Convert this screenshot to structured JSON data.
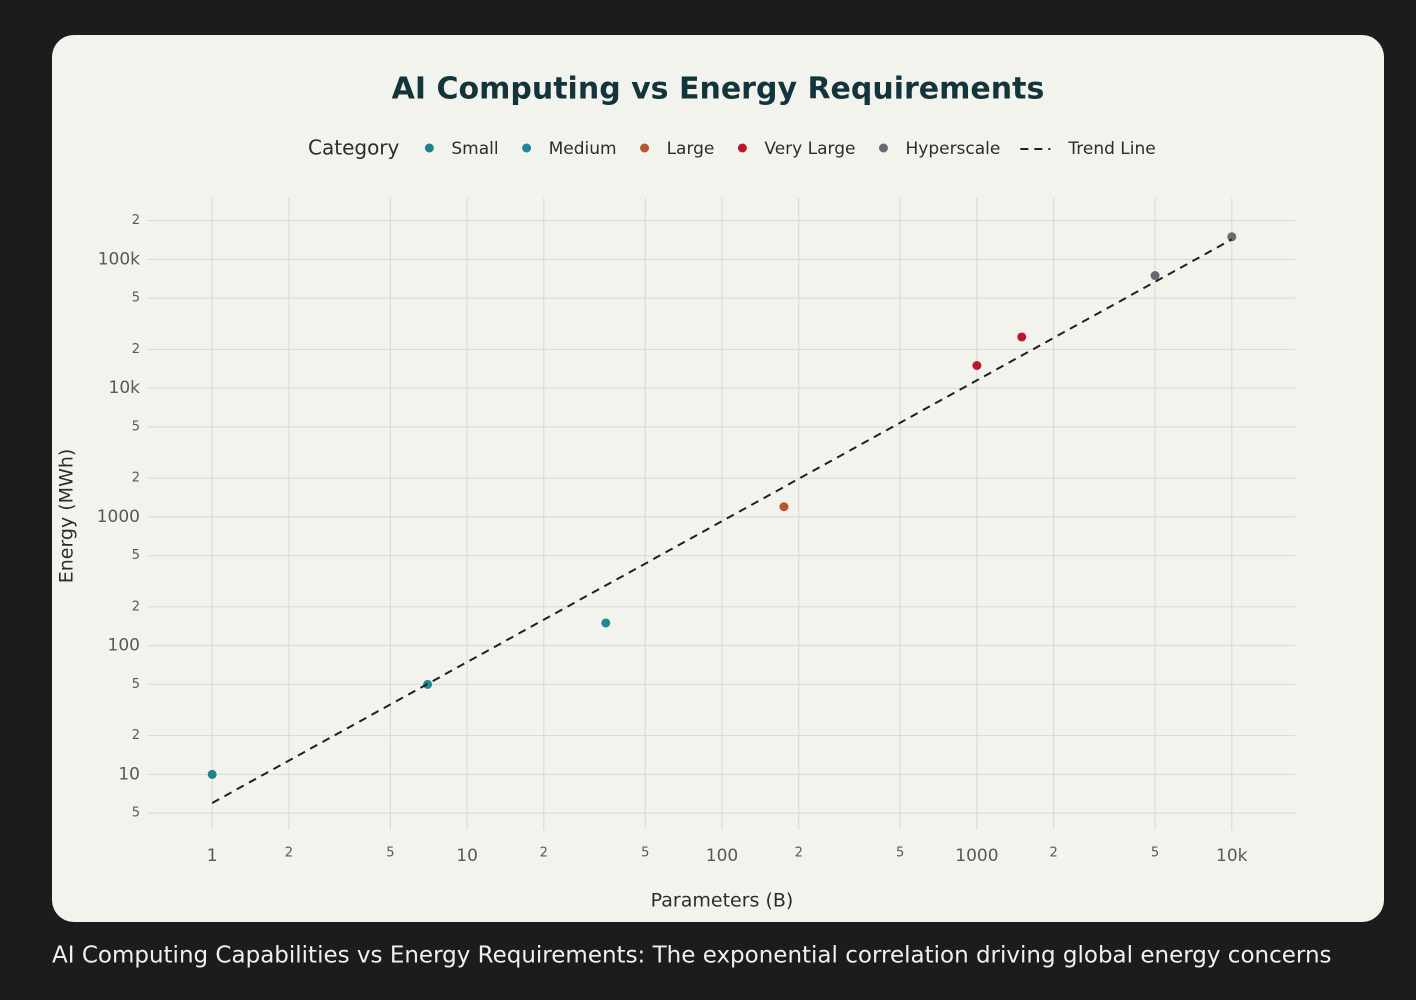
{
  "chart_data": {
    "type": "scatter",
    "title": "AI Computing vs Energy Requirements",
    "caption": "AI Computing Capabilities vs Energy Requirements: The exponential correlation driving global energy concerns",
    "legend_title": "Category",
    "xlabel": "Parameters (B)",
    "ylabel": "Energy (MWh)",
    "xscale": "log",
    "yscale": "log",
    "grid": true,
    "legend": "top",
    "xlim": [
      0.56,
      17700
    ],
    "ylim": [
      3.7,
      300000
    ],
    "xticks": [
      1,
      {
        "value": 2,
        "label": "2"
      },
      5,
      10,
      {
        "value": 20,
        "label": "2"
      },
      {
        "value": 50,
        "label": "5"
      },
      100,
      {
        "value": 200,
        "label": "2"
      },
      {
        "value": 500,
        "label": "5"
      },
      1000,
      {
        "value": 2000,
        "label": "2"
      },
      {
        "value": 5000,
        "label": "5"
      },
      {
        "value": 10000,
        "label": "10k"
      }
    ],
    "yticks": [
      5,
      10,
      {
        "value": 20,
        "label": "2"
      },
      {
        "value": 50,
        "label": "5"
      },
      100,
      {
        "value": 200,
        "label": "2"
      },
      {
        "value": 500,
        "label": "5"
      },
      1000,
      {
        "value": 2000,
        "label": "2"
      },
      {
        "value": 5000,
        "label": "5"
      },
      {
        "value": 10000,
        "label": "10k"
      },
      {
        "value": 20000,
        "label": "2"
      },
      {
        "value": 50000,
        "label": "5"
      },
      {
        "value": 100000,
        "label": "100k"
      },
      {
        "value": 200000,
        "label": "2"
      }
    ],
    "series": [
      {
        "name": "Small",
        "color": "#21808d",
        "x": [
          1
        ],
        "values": [
          10
        ]
      },
      {
        "name": "Medium",
        "color": "#1f8895",
        "x": [
          7,
          35
        ],
        "values": [
          50,
          150
        ]
      },
      {
        "name": "Large",
        "color": "#b4572f",
        "x": [
          175
        ],
        "values": [
          1200
        ]
      },
      {
        "name": "Very Large",
        "color": "#c0152f",
        "x": [
          1000,
          1500
        ],
        "values": [
          15000,
          25000
        ]
      },
      {
        "name": "Hyperscale",
        "color": "#626c71",
        "x": [
          5000,
          10000
        ],
        "values": [
          75000,
          150000
        ]
      },
      {
        "name": "Trend Line",
        "color": "#1f2121",
        "dash": "dash",
        "x": [
          1,
          10000
        ],
        "values": [
          6,
          143000
        ]
      }
    ]
  }
}
